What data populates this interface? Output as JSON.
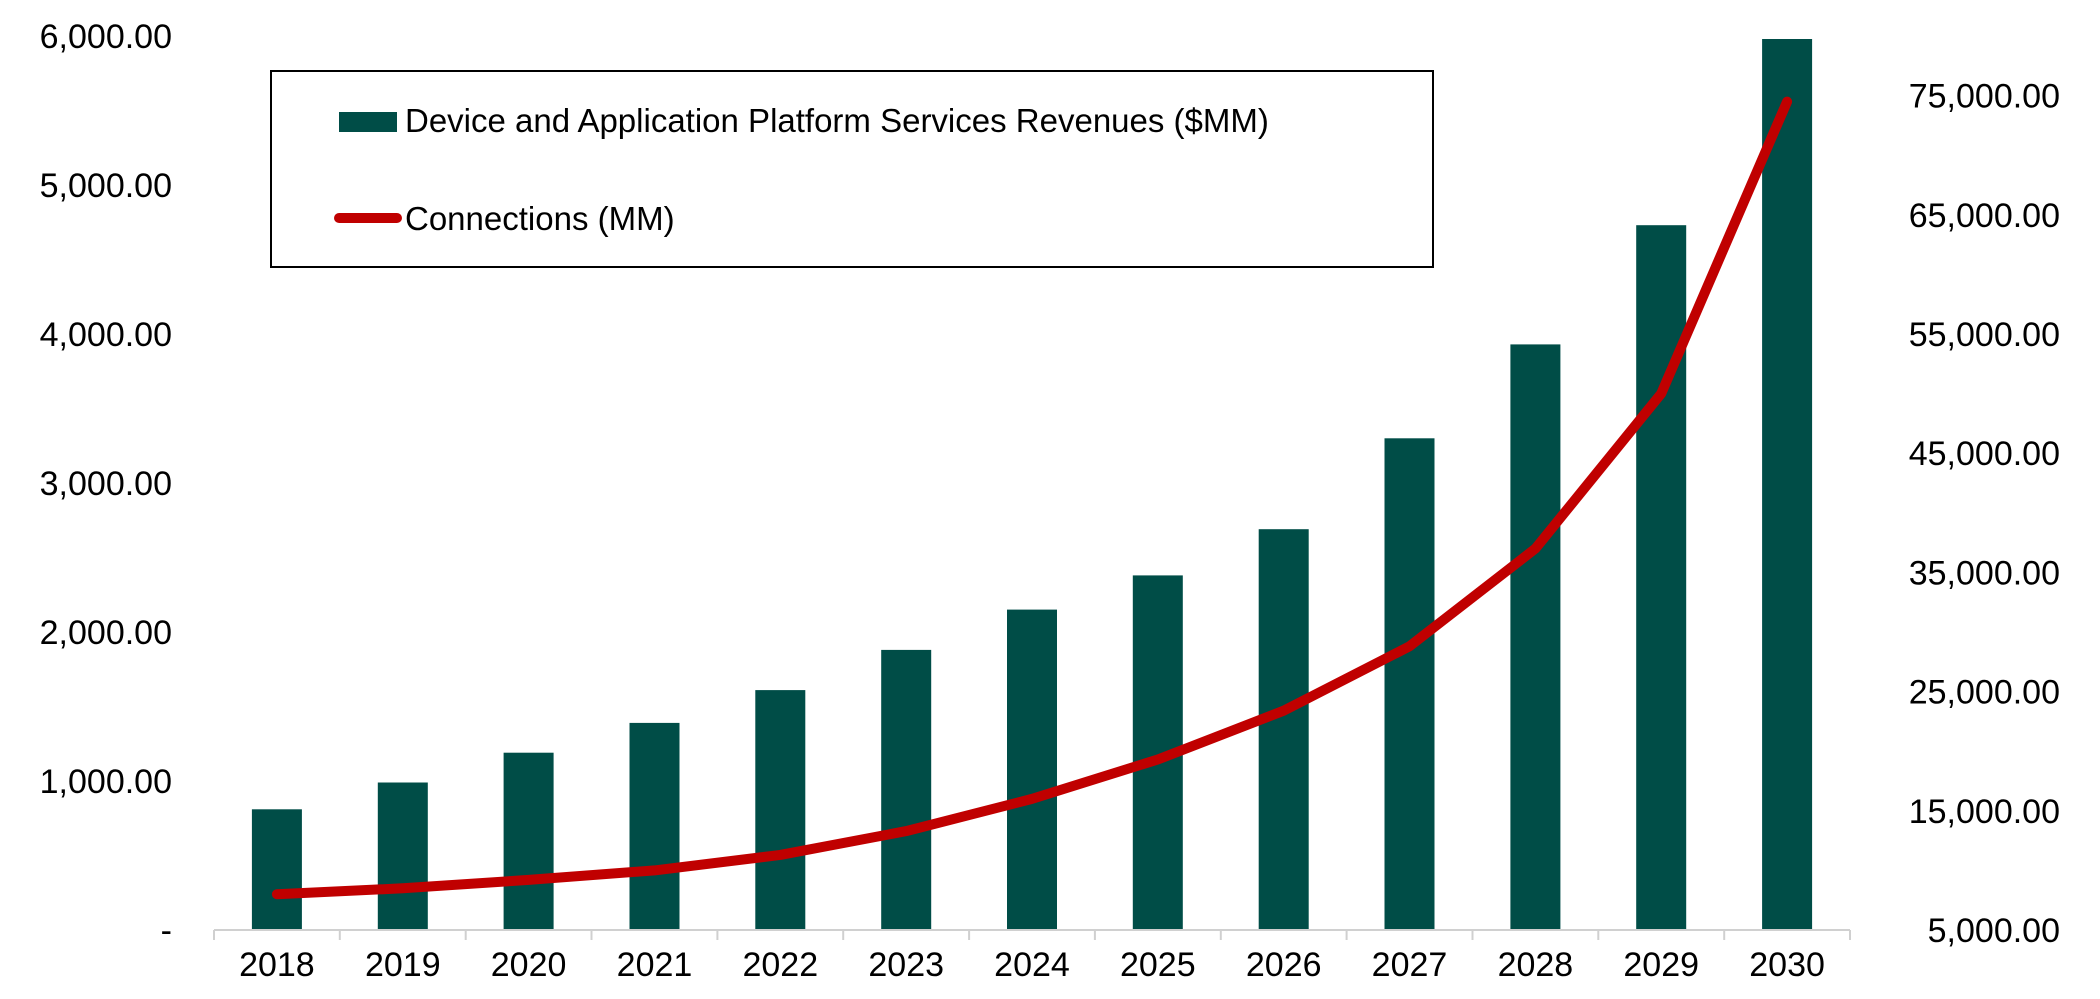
{
  "chart_data": {
    "type": "bar+line",
    "title": "",
    "categories": [
      "2018",
      "2019",
      "2020",
      "2021",
      "2022",
      "2023",
      "2024",
      "2025",
      "2026",
      "2027",
      "2028",
      "2029",
      "2030"
    ],
    "series": [
      {
        "name": "Device and Application Platform Services Revenues ($MM)",
        "type": "bar",
        "axis": "left",
        "color": "#004D47",
        "values": [
          810,
          990,
          1190,
          1390,
          1610,
          1880,
          2150,
          2380,
          2690,
          3300,
          3930,
          4730,
          5980
        ]
      },
      {
        "name": "Connections (MM)",
        "type": "line",
        "axis": "right",
        "color": "#C00000",
        "values": [
          8000,
          8500,
          9200,
          10000,
          11300,
          13300,
          16000,
          19300,
          23400,
          28800,
          37000,
          50000,
          74500
        ]
      }
    ],
    "y_left": {
      "min": 0,
      "max": 6000,
      "ticks": [
        0,
        1000,
        2000,
        3000,
        4000,
        5000,
        6000
      ],
      "tick_labels": [
        "-",
        "1,000.00",
        "2,000.00",
        "3,000.00",
        "4,000.00",
        "5,000.00",
        "6,000.00"
      ]
    },
    "y_right": {
      "min": 5000,
      "max": 80000,
      "ticks": [
        5000,
        15000,
        25000,
        35000,
        45000,
        55000,
        65000,
        75000
      ],
      "tick_labels": [
        "5,000.00",
        "15,000.00",
        "25,000.00",
        "35,000.00",
        "45,000.00",
        "55,000.00",
        "65,000.00",
        "75,000.00"
      ]
    },
    "legend": {
      "placement": "top-left",
      "entries": [
        "Device and Application Platform Services Revenues ($MM)",
        "Connections (MM)"
      ]
    },
    "grid": false
  }
}
